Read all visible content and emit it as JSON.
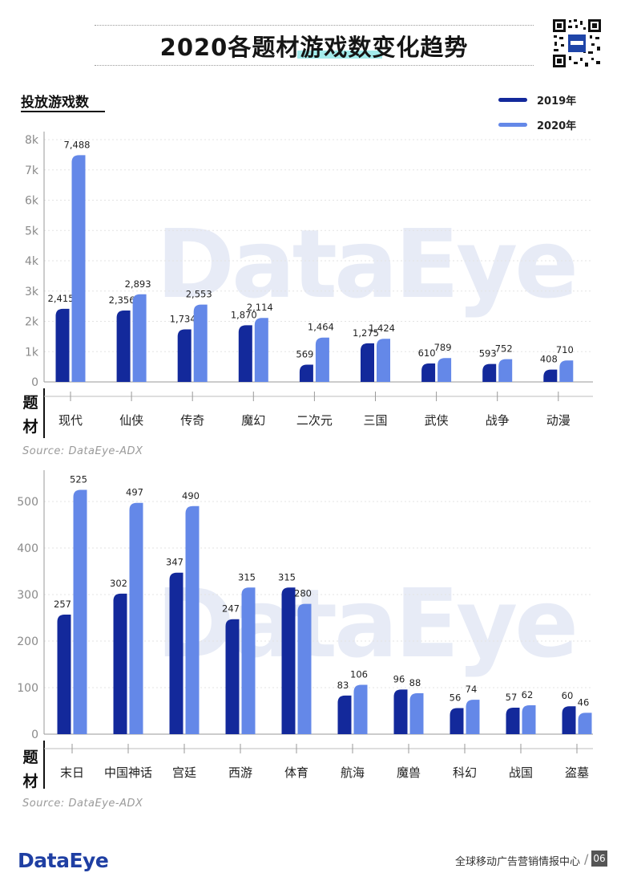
{
  "header": {
    "title": "2020各题材游戏数变化趋势",
    "qr_icon": "qr-code-icon"
  },
  "section1": {
    "subtitle": "投放游戏数"
  },
  "legend": [
    {
      "name": "2019年",
      "color": "#13299b"
    },
    {
      "name": "2020年",
      "color": "#6488e8"
    }
  ],
  "source": "Source: DataEye-ADX",
  "watermark": "DataEye",
  "footer": {
    "logo": "DataEye",
    "text": "全球移动广告营销情报中心",
    "separator": "/",
    "page": "06"
  },
  "chart_data": [
    {
      "type": "bar",
      "category_axis_label": "题材",
      "categories": [
        "现代",
        "仙侠",
        "传奇",
        "魔幻",
        "二次元",
        "三国",
        "武侠",
        "战争",
        "动漫"
      ],
      "series": [
        {
          "name": "2019年",
          "values": [
            2415,
            2356,
            1734,
            1870,
            569,
            1275,
            610,
            593,
            408
          ],
          "labels": [
            "2,415",
            "2,356",
            "1,734",
            "1,870",
            "569",
            "1,275",
            "610",
            "593",
            "408"
          ]
        },
        {
          "name": "2020年",
          "values": [
            7488,
            2893,
            2553,
            2114,
            1464,
            1424,
            789,
            752,
            710
          ],
          "labels": [
            "7,488",
            "2,893",
            "2,553",
            "2,114",
            "1,464",
            "1,424",
            "789",
            "752",
            "710"
          ]
        }
      ],
      "yticks": [
        "0",
        "1k",
        "2k",
        "3k",
        "4k",
        "5k",
        "6k",
        "7k",
        "8k"
      ],
      "ylim": [
        0,
        8000
      ],
      "grid": true
    },
    {
      "type": "bar",
      "category_axis_label": "题材",
      "categories": [
        "末日",
        "中国神话",
        "宫廷",
        "西游",
        "体育",
        "航海",
        "魔兽",
        "科幻",
        "战国",
        "盗墓"
      ],
      "series": [
        {
          "name": "2019年",
          "values": [
            257,
            302,
            347,
            247,
            315,
            83,
            96,
            56,
            57,
            60
          ],
          "labels": [
            "257",
            "302",
            "347",
            "247",
            "315",
            "83",
            "96",
            "56",
            "57",
            "60"
          ]
        },
        {
          "name": "2020年",
          "values": [
            525,
            497,
            490,
            315,
            280,
            106,
            88,
            74,
            62,
            46
          ],
          "labels": [
            "525",
            "497",
            "490",
            "315",
            "280",
            "106",
            "88",
            "74",
            "62",
            "46"
          ]
        }
      ],
      "yticks": [
        "0",
        "100",
        "200",
        "300",
        "400",
        "500"
      ],
      "ylim": [
        0,
        550
      ],
      "grid": true
    }
  ]
}
